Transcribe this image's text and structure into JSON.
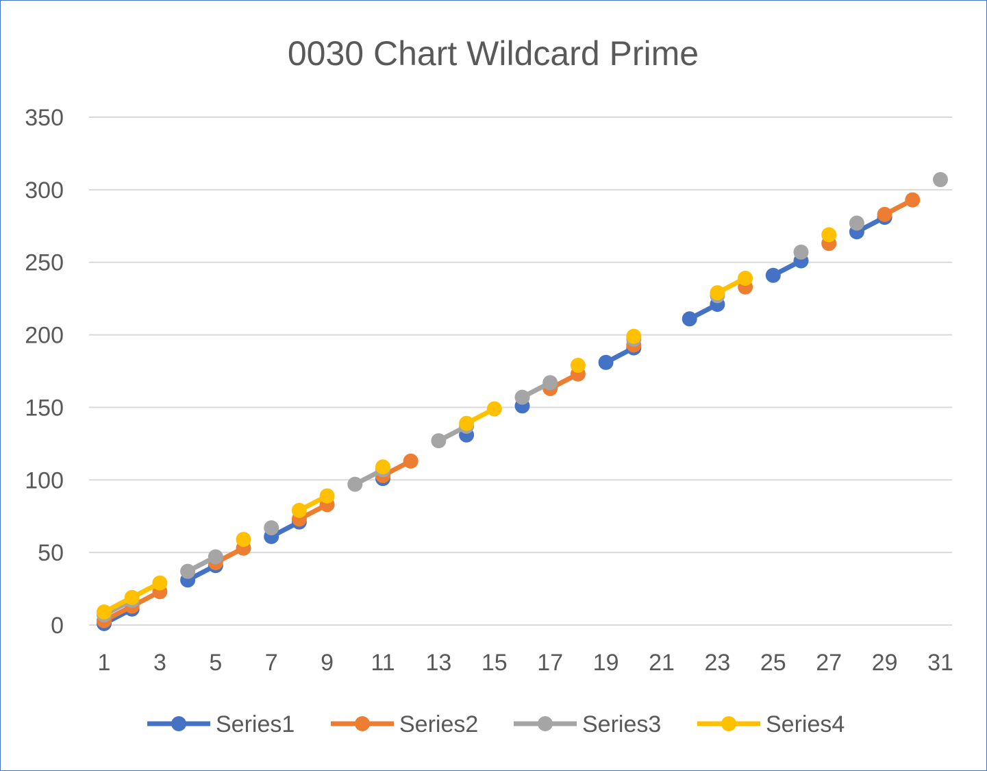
{
  "chart_data": {
    "type": "line",
    "title": "0030 Chart Wildcard Prime",
    "xlabel": "",
    "ylabel": "",
    "x_categories": [
      1,
      2,
      3,
      4,
      5,
      6,
      7,
      8,
      9,
      10,
      11,
      12,
      13,
      14,
      15,
      16,
      17,
      18,
      19,
      20,
      21,
      22,
      23,
      24,
      25,
      26,
      27,
      28,
      29,
      30,
      31
    ],
    "x_tick_labels": [
      "1",
      "3",
      "5",
      "7",
      "9",
      "11",
      "13",
      "15",
      "17",
      "19",
      "21",
      "23",
      "25",
      "27",
      "29",
      "31"
    ],
    "y_tick_labels": [
      "0",
      "50",
      "100",
      "150",
      "200",
      "250",
      "300",
      "350"
    ],
    "ylim": [
      0,
      350
    ],
    "grid": true,
    "legend_position": "bottom",
    "series": [
      {
        "name": "Series1",
        "color": "#4472c4",
        "values": [
          1,
          11,
          null,
          31,
          41,
          null,
          61,
          71,
          null,
          null,
          101,
          null,
          null,
          131,
          null,
          151,
          null,
          null,
          181,
          191,
          null,
          211,
          221,
          null,
          241,
          251,
          null,
          271,
          281,
          null,
          null
        ]
      },
      {
        "name": "Series2",
        "color": "#ed7d31",
        "values": [
          3,
          13,
          23,
          null,
          43,
          53,
          null,
          73,
          83,
          null,
          103,
          113,
          null,
          null,
          null,
          null,
          163,
          173,
          null,
          193,
          null,
          null,
          null,
          233,
          null,
          null,
          263,
          null,
          283,
          293,
          null
        ]
      },
      {
        "name": "Series3",
        "color": "#a5a5a5",
        "values": [
          7,
          17,
          null,
          37,
          47,
          null,
          67,
          null,
          null,
          97,
          107,
          null,
          127,
          137,
          null,
          157,
          167,
          null,
          null,
          197,
          null,
          null,
          227,
          null,
          null,
          257,
          null,
          277,
          null,
          null,
          307
        ]
      },
      {
        "name": "Series4",
        "color": "#ffc000",
        "values": [
          9,
          19,
          29,
          null,
          null,
          59,
          null,
          79,
          89,
          null,
          109,
          null,
          null,
          139,
          149,
          null,
          null,
          179,
          null,
          199,
          null,
          null,
          229,
          239,
          null,
          null,
          269,
          null,
          null,
          null,
          null
        ]
      }
    ]
  }
}
